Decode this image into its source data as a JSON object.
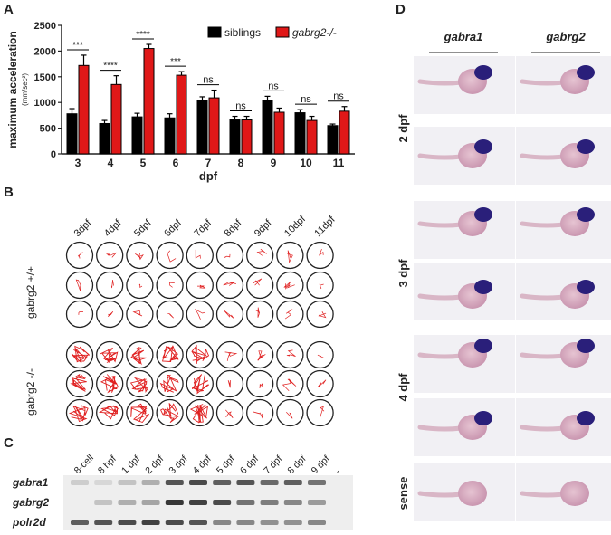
{
  "panels": {
    "a": "A",
    "b": "B",
    "c": "C",
    "d": "D"
  },
  "chart_data": {
    "type": "bar",
    "xlabel": "dpf",
    "ylabel": "maximum acceleration",
    "ylabel_unit": "(mm/sec²)",
    "ylim": [
      0,
      2500
    ],
    "yticks": [
      0,
      500,
      1000,
      1500,
      2000,
      2500
    ],
    "categories": [
      "3",
      "4",
      "5",
      "6",
      "7",
      "8",
      "9",
      "10",
      "11"
    ],
    "legend_position": "top",
    "series": [
      {
        "name": "siblings",
        "color": "#000000",
        "values": [
          780,
          590,
          720,
          700,
          1040,
          670,
          1030,
          800,
          550
        ],
        "errors": [
          100,
          60,
          70,
          80,
          70,
          60,
          90,
          60,
          30
        ]
      },
      {
        "name": "gabrg2-/-",
        "color": "#e01818",
        "values": [
          1720,
          1350,
          2050,
          1530,
          1090,
          660,
          810,
          650,
          830
        ],
        "errors": [
          200,
          170,
          80,
          70,
          150,
          70,
          80,
          80,
          90
        ]
      }
    ],
    "significance": [
      "***",
      "****",
      "****",
      "***",
      "ns",
      "ns",
      "ns",
      "ns",
      "ns"
    ]
  },
  "panel_b": {
    "days": [
      "3dpf",
      "4dpf",
      "5dpf",
      "6dpf",
      "7dpf",
      "8dpf",
      "9dpf",
      "10dpf",
      "11dpf"
    ],
    "group_wt": "gabrg2 +/+",
    "group_mut": "gabrg2 -/-"
  },
  "panel_c": {
    "lanes": [
      "8-cell",
      "8 hpf",
      "1 dpf",
      "2 dpf",
      "3 dpf",
      "4 dpf",
      "5 dpf",
      "6 dpf",
      "7 dpf",
      "8 dpf",
      "9 dpf",
      "-"
    ],
    "genes": [
      "gabra1",
      "gabrg2",
      "polr2d"
    ]
  },
  "panel_d": {
    "columns": [
      "gabra1",
      "gabrg2"
    ],
    "rows": [
      "2 dpf",
      "3 dpf",
      "4 dpf",
      "sense"
    ]
  }
}
